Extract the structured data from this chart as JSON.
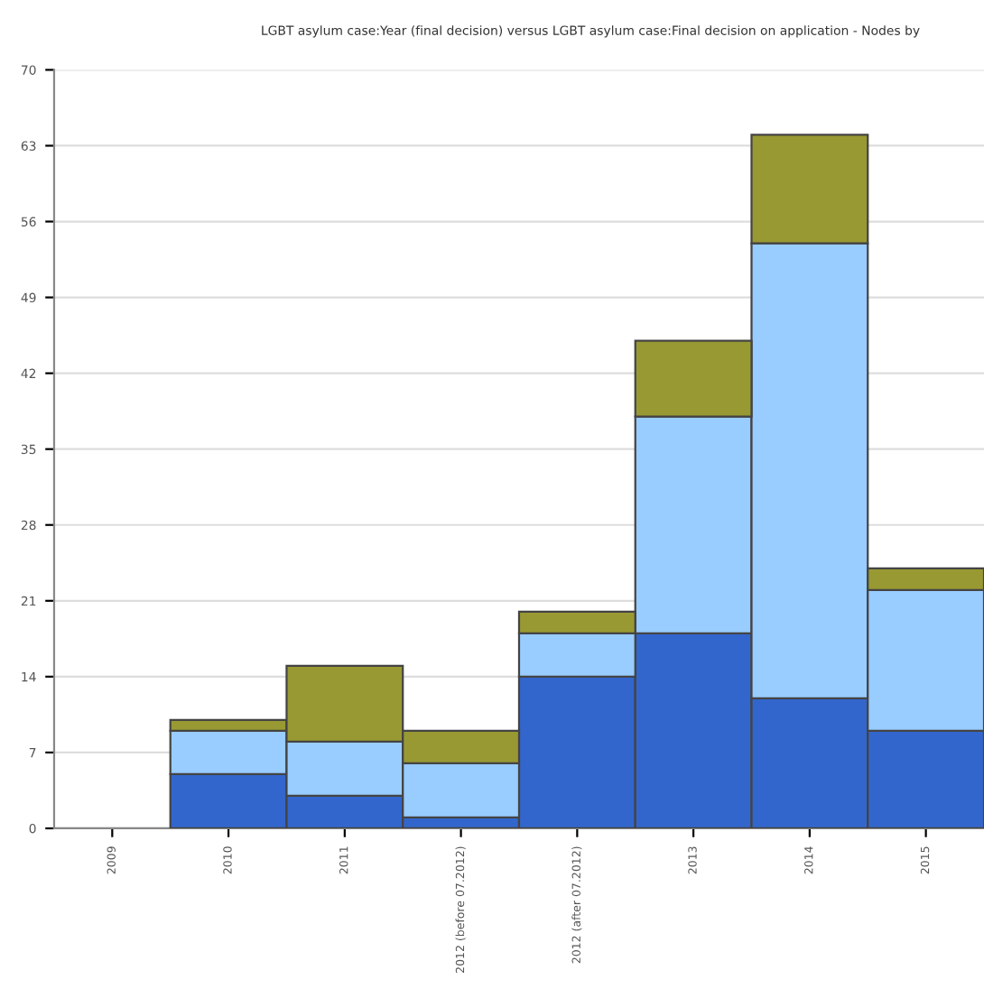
{
  "chart_data": {
    "type": "bar",
    "stacked": true,
    "title": "LGBT asylum case:Year (final decision) versus LGBT asylum case:Final decision on application - Nodes by",
    "categories": [
      "2009",
      "2010",
      "2011",
      "2012 (before 07.2012)",
      "2012 (after 07.2012)",
      "2013",
      "2014",
      "2015"
    ],
    "series": [
      {
        "color": "#3366cc",
        "values": [
          null,
          5,
          3,
          1,
          14,
          18,
          12,
          9
        ]
      },
      {
        "color": "#99ccff",
        "values": [
          null,
          4,
          5,
          5,
          4,
          20,
          42,
          13
        ]
      },
      {
        "color": "#999933",
        "values": [
          null,
          1,
          7,
          3,
          2,
          7,
          10,
          2
        ]
      }
    ],
    "ylim": [
      0,
      70
    ],
    "yticks": [
      0,
      7,
      14,
      21,
      28,
      35,
      42,
      49,
      56,
      63,
      70
    ],
    "grid": "y",
    "legend": false
  }
}
